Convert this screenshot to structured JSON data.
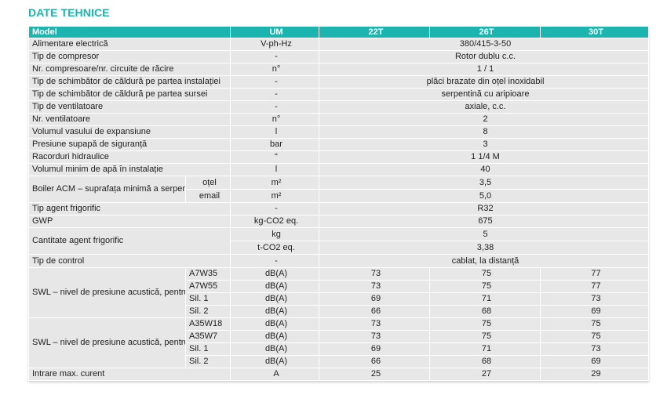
{
  "title": "DATE TEHNICE",
  "header": {
    "model": "Model",
    "um": "UM",
    "m22": "22T",
    "m26": "26T",
    "m30": "30T"
  },
  "rows": {
    "r1": {
      "label": "Alimentare electrică",
      "um": "V-ph-Hz",
      "val": "380/415-3-50"
    },
    "r2": {
      "label": "Tip de compresor",
      "um": "-",
      "val": "Rotor dublu c.c."
    },
    "r3": {
      "label": "Nr. compresoare/nr. circuite de răcire",
      "um": "n°",
      "val": "1 / 1"
    },
    "r4": {
      "label": "Tip de schimbător de căldură pe partea instalației",
      "um": "-",
      "val": "plăci brazate din oțel inoxidabil"
    },
    "r5": {
      "label": "Tip de schimbător de căldură pe partea sursei",
      "um": "-",
      "val": "serpentină cu aripioare"
    },
    "r6": {
      "label": "Tip de ventilatoare",
      "um": "-",
      "val": "axiale, c.c."
    },
    "r7": {
      "label": "Nr. ventilatoare",
      "um": "n°",
      "val": "2"
    },
    "r8": {
      "label": "Volumul vasului de expansiune",
      "um": "l",
      "val": "8"
    },
    "r9": {
      "label": "Presiune supapă de siguranță",
      "um": "bar",
      "val": "3"
    },
    "r10": {
      "label": "Racorduri hidraulice",
      "um": "“",
      "val": "1 1/4 M"
    },
    "r11": {
      "label": "Volumul minim de apă în instalație",
      "um": "l",
      "val": "40"
    }
  },
  "boiler": {
    "label": "Boiler ACM – suprafața minimă a serpentinei",
    "otel": {
      "sub": "oțel",
      "um": "m²",
      "val": "3,5"
    },
    "email": {
      "sub": "email",
      "um": "m²",
      "val": "5,0"
    }
  },
  "agent": {
    "label": "Tip agent frigorific",
    "um": "-",
    "val": "R32"
  },
  "gwp": {
    "label": "GWP",
    "um": "kg-CO2 eq.",
    "val": "675"
  },
  "cantitate": {
    "label": "Cantitate agent frigorific",
    "kg": {
      "um": "kg",
      "val": "5"
    },
    "t": {
      "um": "t-CO2 eq.",
      "val": "3,38"
    }
  },
  "control": {
    "label": "Tip de control",
    "um": "-",
    "val": "cablat, la distanță"
  },
  "swl_cool": {
    "label": "SWL – nivel de presiune acustică, pentru răcire*",
    "rows": [
      {
        "sub": "A7W35",
        "um": "dB(A)",
        "v22": "73",
        "v26": "75",
        "v30": "77"
      },
      {
        "sub": "A7W55",
        "um": "dB(A)",
        "v22": "73",
        "v26": "75",
        "v30": "77"
      },
      {
        "sub": "Sil. 1",
        "um": "dB(A)",
        "v22": "69",
        "v26": "71",
        "v30": "73"
      },
      {
        "sub": "Sil. 2",
        "um": "dB(A)",
        "v22": "66",
        "v26": "68",
        "v30": "69"
      }
    ]
  },
  "swl_heat": {
    "label": "SWL – nivel de presiune acustică, pentru încălzire*",
    "rows": [
      {
        "sub": "A35W18",
        "um": "dB(A)",
        "v22": "73",
        "v26": "75",
        "v30": "75"
      },
      {
        "sub": "A35W7",
        "um": "dB(A)",
        "v22": "73",
        "v26": "75",
        "v30": "75"
      },
      {
        "sub": "Sil. 1",
        "um": "dB(A)",
        "v22": "69",
        "v26": "71",
        "v30": "73"
      },
      {
        "sub": "Sil. 2",
        "um": "dB(A)",
        "v22": "66",
        "v26": "68",
        "v30": "69"
      }
    ]
  },
  "current": {
    "label": "Intrare max. curent",
    "um": "A",
    "v22": "25",
    "v26": "27",
    "v30": "29"
  }
}
